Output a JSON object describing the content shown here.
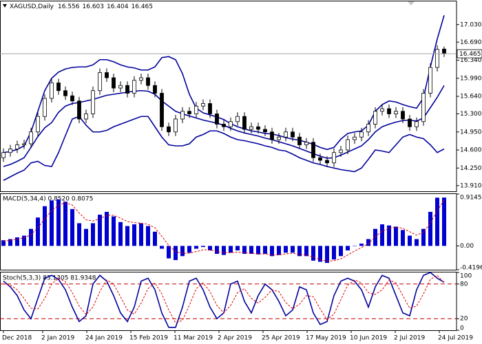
{
  "chart_data": [
    {
      "type": "candlestick",
      "title": "XAGUSD,Daily",
      "up_color": "#ffffff",
      "down_color": "#000000",
      "wick_color": "#000000",
      "last_price_color": "#a0a0a0",
      "open": [
        14.45,
        14.55,
        14.62,
        14.7,
        14.72,
        14.95,
        15.25,
        15.6,
        15.9,
        15.75,
        15.65,
        15.55,
        15.2,
        15.3,
        15.75,
        16.1,
        16.0,
        15.8,
        15.85,
        15.7,
        15.95,
        16.0,
        15.85,
        15.7,
        15.05,
        14.95,
        15.2,
        15.35,
        15.3,
        15.45,
        15.5,
        15.3,
        15.1,
        15.05,
        15.15,
        15.25,
        15.0,
        15.05,
        15.0,
        14.95,
        14.8,
        14.85,
        14.95,
        14.85,
        14.7,
        14.75,
        14.45,
        14.4,
        14.35,
        14.55,
        14.6,
        14.8,
        14.85,
        14.95,
        15.1,
        15.35,
        15.4,
        15.3,
        15.35,
        15.2,
        15.05,
        15.15,
        15.7,
        16.2,
        16.556
      ],
      "high": [
        14.63,
        14.7,
        14.78,
        14.8,
        15.03,
        15.33,
        15.68,
        15.98,
        15.98,
        15.83,
        15.73,
        15.63,
        15.38,
        15.83,
        16.18,
        16.18,
        16.08,
        15.93,
        15.93,
        16.03,
        16.08,
        16.08,
        15.93,
        15.78,
        15.13,
        15.28,
        15.43,
        15.43,
        15.53,
        15.58,
        15.58,
        15.38,
        15.18,
        15.23,
        15.33,
        15.33,
        15.13,
        15.13,
        15.08,
        15.03,
        14.93,
        15.03,
        15.03,
        14.93,
        14.83,
        14.83,
        14.53,
        14.48,
        14.63,
        14.68,
        14.88,
        14.93,
        15.03,
        15.18,
        15.43,
        15.48,
        15.48,
        15.43,
        15.43,
        15.28,
        15.23,
        15.78,
        16.28,
        16.63,
        16.603
      ],
      "low": [
        14.37,
        14.47,
        14.54,
        14.62,
        14.64,
        14.87,
        15.17,
        15.52,
        15.67,
        15.57,
        15.47,
        15.12,
        15.12,
        15.22,
        15.67,
        15.92,
        15.72,
        15.72,
        15.62,
        15.62,
        15.87,
        15.77,
        15.62,
        14.97,
        14.87,
        14.87,
        15.12,
        15.22,
        15.22,
        15.37,
        15.22,
        15.02,
        14.97,
        14.97,
        15.07,
        14.92,
        14.92,
        14.92,
        14.87,
        14.72,
        14.72,
        14.77,
        14.77,
        14.62,
        14.62,
        14.37,
        14.32,
        14.27,
        14.27,
        14.47,
        14.52,
        14.72,
        14.77,
        14.87,
        15.02,
        15.27,
        15.22,
        15.22,
        15.12,
        14.97,
        14.97,
        15.07,
        15.62,
        16.12,
        16.404
      ],
      "close": [
        14.55,
        14.62,
        14.7,
        14.72,
        14.95,
        15.25,
        15.6,
        15.9,
        15.75,
        15.65,
        15.55,
        15.2,
        15.3,
        15.75,
        16.1,
        16.0,
        15.8,
        15.85,
        15.7,
        15.95,
        16.0,
        15.85,
        15.7,
        15.05,
        14.95,
        15.2,
        15.35,
        15.3,
        15.45,
        15.5,
        15.3,
        15.1,
        15.05,
        15.15,
        15.25,
        15.0,
        15.05,
        15.0,
        14.95,
        14.8,
        14.85,
        14.95,
        14.85,
        14.7,
        14.75,
        14.45,
        14.4,
        14.35,
        14.55,
        14.6,
        14.8,
        14.85,
        14.95,
        15.1,
        15.35,
        15.4,
        15.3,
        15.35,
        15.2,
        15.05,
        15.15,
        15.7,
        16.2,
        16.55,
        16.465
      ],
      "series": [
        {
          "color": "#00009c",
          "values": [
            14.55,
            14.57,
            14.61,
            14.68,
            14.95,
            15.35,
            15.75,
            15.99,
            16.11,
            16.17,
            16.2,
            16.21,
            16.21,
            16.25,
            16.35,
            16.35,
            16.31,
            16.25,
            16.21,
            16.19,
            16.15,
            16.15,
            16.21,
            16.39,
            16.41,
            16.35,
            16.08,
            15.68,
            15.41,
            15.32,
            15.28,
            15.24,
            15.19,
            15.11,
            15.05,
            15.01,
            14.97,
            14.95,
            14.92,
            14.91,
            14.88,
            14.84,
            14.81,
            14.79,
            14.75,
            14.71,
            14.65,
            14.61,
            14.65,
            14.81,
            14.92,
            14.95,
            14.97,
            15.08,
            15.35,
            15.48,
            15.55,
            15.53,
            15.48,
            15.44,
            15.41,
            15.61,
            16.21,
            16.75,
            17.21
          ]
        },
        {
          "color": "#00009c",
          "values": [
            14.28,
            14.32,
            14.38,
            14.45,
            14.65,
            14.86,
            15.03,
            15.13,
            15.33,
            15.45,
            15.5,
            15.52,
            15.55,
            15.58,
            15.62,
            15.66,
            15.68,
            15.7,
            15.72,
            15.74,
            15.75,
            15.74,
            15.68,
            15.55,
            15.45,
            15.35,
            15.3,
            15.26,
            15.22,
            15.18,
            15.15,
            15.12,
            15.08,
            15.02,
            14.97,
            14.93,
            14.9,
            14.87,
            14.83,
            14.8,
            14.76,
            14.72,
            14.68,
            14.63,
            14.58,
            14.53,
            14.48,
            14.44,
            14.45,
            14.5,
            14.56,
            14.62,
            14.68,
            14.8,
            14.95,
            15.05,
            15.1,
            15.14,
            15.17,
            15.18,
            15.16,
            15.22,
            15.42,
            15.62,
            15.85
          ]
        },
        {
          "color": "#00009c",
          "values": [
            14.01,
            14.08,
            14.15,
            14.21,
            14.35,
            14.38,
            14.3,
            14.28,
            14.55,
            14.88,
            15.2,
            15.25,
            15.08,
            14.95,
            14.95,
            14.98,
            15.05,
            15.1,
            15.15,
            15.2,
            15.25,
            15.25,
            15.05,
            14.85,
            14.7,
            14.68,
            14.68,
            14.72,
            14.85,
            14.9,
            14.97,
            14.97,
            14.92,
            14.85,
            14.8,
            14.78,
            14.75,
            14.72,
            14.68,
            14.65,
            14.6,
            14.58,
            14.52,
            14.45,
            14.4,
            14.35,
            14.32,
            14.28,
            14.25,
            14.22,
            14.2,
            14.18,
            14.25,
            14.42,
            14.6,
            14.58,
            14.55,
            14.7,
            14.85,
            14.9,
            14.85,
            14.82,
            14.7,
            14.55,
            14.62
          ]
        }
      ],
      "ylim": [
        13.8,
        17.48
      ],
      "yticks": [
        {
          "value": 17.03,
          "label": "17.030"
        },
        {
          "value": 16.69,
          "label": "16.690"
        },
        {
          "value": 16.34,
          "label": "16.340"
        },
        {
          "value": 15.99,
          "label": "15.990"
        },
        {
          "value": 15.64,
          "label": "15.640"
        },
        {
          "value": 15.3,
          "label": "15.300"
        },
        {
          "value": 14.95,
          "label": "14.950"
        },
        {
          "value": 14.6,
          "label": "14.600"
        },
        {
          "value": 14.25,
          "label": "14.250"
        },
        {
          "value": 13.91,
          "label": "13.910"
        }
      ]
    },
    {
      "type": "macd",
      "title": "MACD(5,34,4) 0.8520 0.8075",
      "series": [
        {
          "kind": "bar",
          "color": "#0000d0",
          "values": [
            0.1,
            0.12,
            0.15,
            0.18,
            0.3,
            0.5,
            0.7,
            0.8,
            0.82,
            0.78,
            0.65,
            0.4,
            0.3,
            0.4,
            0.55,
            0.6,
            0.52,
            0.42,
            0.35,
            0.38,
            0.4,
            0.35,
            0.25,
            -0.05,
            -0.22,
            -0.25,
            -0.18,
            -0.12,
            -0.05,
            -0.02,
            -0.08,
            -0.14,
            -0.16,
            -0.12,
            -0.08,
            -0.14,
            -0.14,
            -0.15,
            -0.14,
            -0.18,
            -0.16,
            -0.12,
            -0.12,
            -0.18,
            -0.18,
            -0.26,
            -0.28,
            -0.3,
            -0.24,
            -0.18,
            -0.08,
            0.0,
            0.04,
            0.12,
            0.3,
            0.38,
            0.36,
            0.34,
            0.28,
            0.18,
            0.12,
            0.3,
            0.6,
            0.85,
            0.852
          ]
        },
        {
          "kind": "line",
          "dash": true,
          "color": "#e00000",
          "values": [
            0.08,
            0.1,
            0.12,
            0.14,
            0.2,
            0.32,
            0.48,
            0.62,
            0.72,
            0.76,
            0.72,
            0.58,
            0.46,
            0.44,
            0.48,
            0.54,
            0.54,
            0.49,
            0.43,
            0.41,
            0.4,
            0.38,
            0.32,
            0.17,
            0.01,
            -0.1,
            -0.13,
            -0.13,
            -0.1,
            -0.07,
            -0.07,
            -0.1,
            -0.12,
            -0.12,
            -0.11,
            -0.12,
            -0.13,
            -0.14,
            -0.14,
            -0.16,
            -0.16,
            -0.14,
            -0.13,
            -0.15,
            -0.16,
            -0.2,
            -0.24,
            -0.27,
            -0.26,
            -0.23,
            -0.16,
            -0.09,
            -0.03,
            0.04,
            0.16,
            0.26,
            0.31,
            0.33,
            0.31,
            0.25,
            0.19,
            0.24,
            0.4,
            0.62,
            0.8075
          ]
        }
      ],
      "ylim": [
        -0.4196,
        0.9145
      ],
      "yticks": [
        0.9145,
        {
          "value": 0,
          "label": "0.00"
        },
        -0.4196
      ]
    },
    {
      "type": "line",
      "title": "Stoch(5,3,3) 83.1305 81.9348",
      "level_color": "#c00000",
      "series": [
        {
          "kind": "line",
          "color": "#00009c",
          "values": [
            85,
            75,
            60,
            35,
            20,
            55,
            90,
            95,
            88,
            70,
            40,
            15,
            25,
            80,
            95,
            85,
            60,
            30,
            15,
            40,
            85,
            90,
            70,
            30,
            5,
            5,
            40,
            85,
            90,
            70,
            40,
            20,
            30,
            80,
            85,
            50,
            30,
            60,
            80,
            70,
            50,
            25,
            35,
            75,
            70,
            30,
            10,
            15,
            60,
            85,
            90,
            85,
            70,
            40,
            75,
            95,
            90,
            60,
            30,
            25,
            70,
            95,
            100,
            90,
            83.1305
          ]
        },
        {
          "kind": "line",
          "dash": true,
          "color": "#e00000",
          "values": [
            80,
            78,
            70,
            55,
            38,
            37,
            55,
            80,
            90,
            84,
            65,
            42,
            27,
            40,
            67,
            87,
            80,
            58,
            35,
            28,
            47,
            72,
            82,
            63,
            35,
            13,
            17,
            43,
            72,
            82,
            67,
            43,
            30,
            43,
            65,
            72,
            55,
            47,
            57,
            70,
            67,
            48,
            37,
            45,
            60,
            58,
            37,
            18,
            28,
            53,
            78,
            87,
            82,
            65,
            62,
            70,
            87,
            82,
            60,
            38,
            42,
            63,
            88,
            95,
            81.9348
          ]
        }
      ],
      "ylim": [
        0,
        100
      ],
      "yticks": [
        100,
        80,
        20,
        0
      ],
      "xticks": [
        {
          "value": 0,
          "label": "Dec 2018"
        },
        {
          "value": 5.7,
          "label": "2 Jan 2019"
        },
        {
          "value": 12.1,
          "label": "24 Jan 2019"
        },
        {
          "value": 18.5,
          "label": "15 Feb 2019"
        },
        {
          "value": 24.9,
          "label": "11 Mar 2019"
        },
        {
          "value": 31.3,
          "label": "2 Apr 2019"
        },
        {
          "value": 37.7,
          "label": "25 Apr 2019"
        },
        {
          "value": 44.1,
          "label": "17 May 2019"
        },
        {
          "value": 50.5,
          "label": "10 Jun 2019"
        },
        {
          "value": 56.9,
          "label": "2 Jul 2019"
        },
        {
          "value": 63.3,
          "label": "24 Jul 2019"
        }
      ]
    }
  ]
}
